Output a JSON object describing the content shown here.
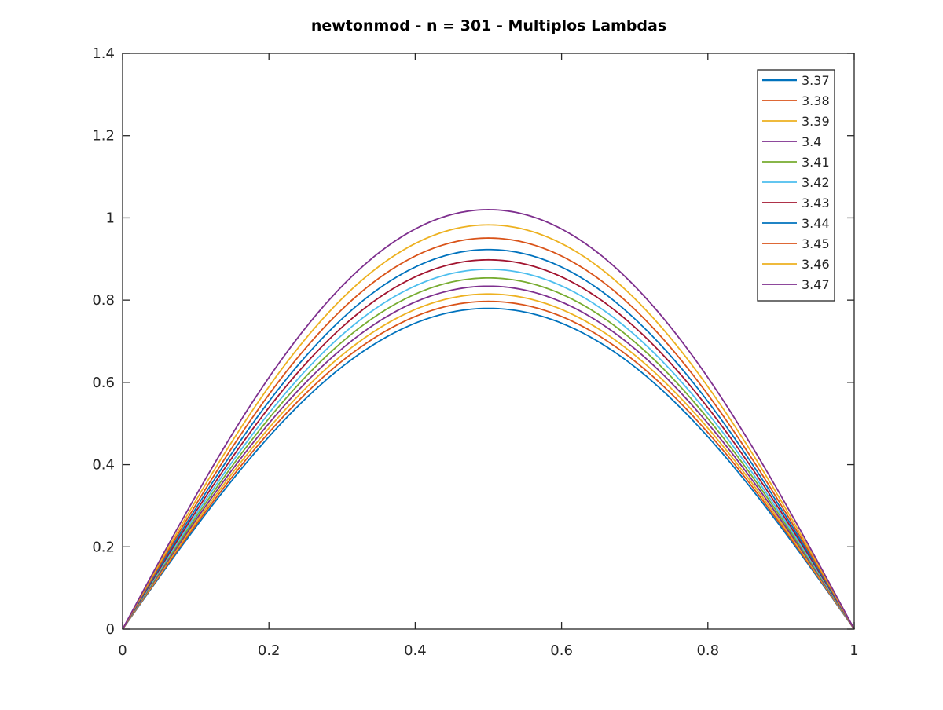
{
  "chart_data": {
    "type": "line",
    "title": "newtonmod - n = 301 - Multiplos Lambdas",
    "xlabel": "",
    "ylabel": "",
    "xlim": [
      0,
      1
    ],
    "ylim": [
      0,
      1.4
    ],
    "xticks": [
      "0",
      "0.2",
      "0.4",
      "0.6",
      "0.8",
      "1"
    ],
    "yticks": [
      "0",
      "0.2",
      "0.4",
      "0.6",
      "0.8",
      "1",
      "1.2",
      "1.4"
    ],
    "grid": false,
    "legend_position": "top-right",
    "n_points": 301,
    "curve_shape": "symmetric arch from (0,0) to (1,0) with maximum at x = 0.5",
    "series": [
      {
        "name": "3.37",
        "color": "#0072BD",
        "peak_x": 0.5,
        "peak_y": 0.78
      },
      {
        "name": "3.38",
        "color": "#D95319",
        "peak_x": 0.5,
        "peak_y": 0.797
      },
      {
        "name": "3.39",
        "color": "#EDB120",
        "peak_x": 0.5,
        "peak_y": 0.815
      },
      {
        "name": "3.4",
        "color": "#7E2F8E",
        "peak_x": 0.5,
        "peak_y": 0.834
      },
      {
        "name": "3.41",
        "color": "#77AC30",
        "peak_x": 0.5,
        "peak_y": 0.854
      },
      {
        "name": "3.42",
        "color": "#4DBEEE",
        "peak_x": 0.5,
        "peak_y": 0.875
      },
      {
        "name": "3.43",
        "color": "#A2142F",
        "peak_x": 0.5,
        "peak_y": 0.898
      },
      {
        "name": "3.44",
        "color": "#0072BD",
        "peak_x": 0.5,
        "peak_y": 0.923
      },
      {
        "name": "3.45",
        "color": "#D95319",
        "peak_x": 0.5,
        "peak_y": 0.951
      },
      {
        "name": "3.46",
        "color": "#EDB120",
        "peak_x": 0.5,
        "peak_y": 0.983
      },
      {
        "name": "3.47",
        "color": "#7E2F8E",
        "peak_x": 0.5,
        "peak_y": 1.02
      }
    ]
  }
}
